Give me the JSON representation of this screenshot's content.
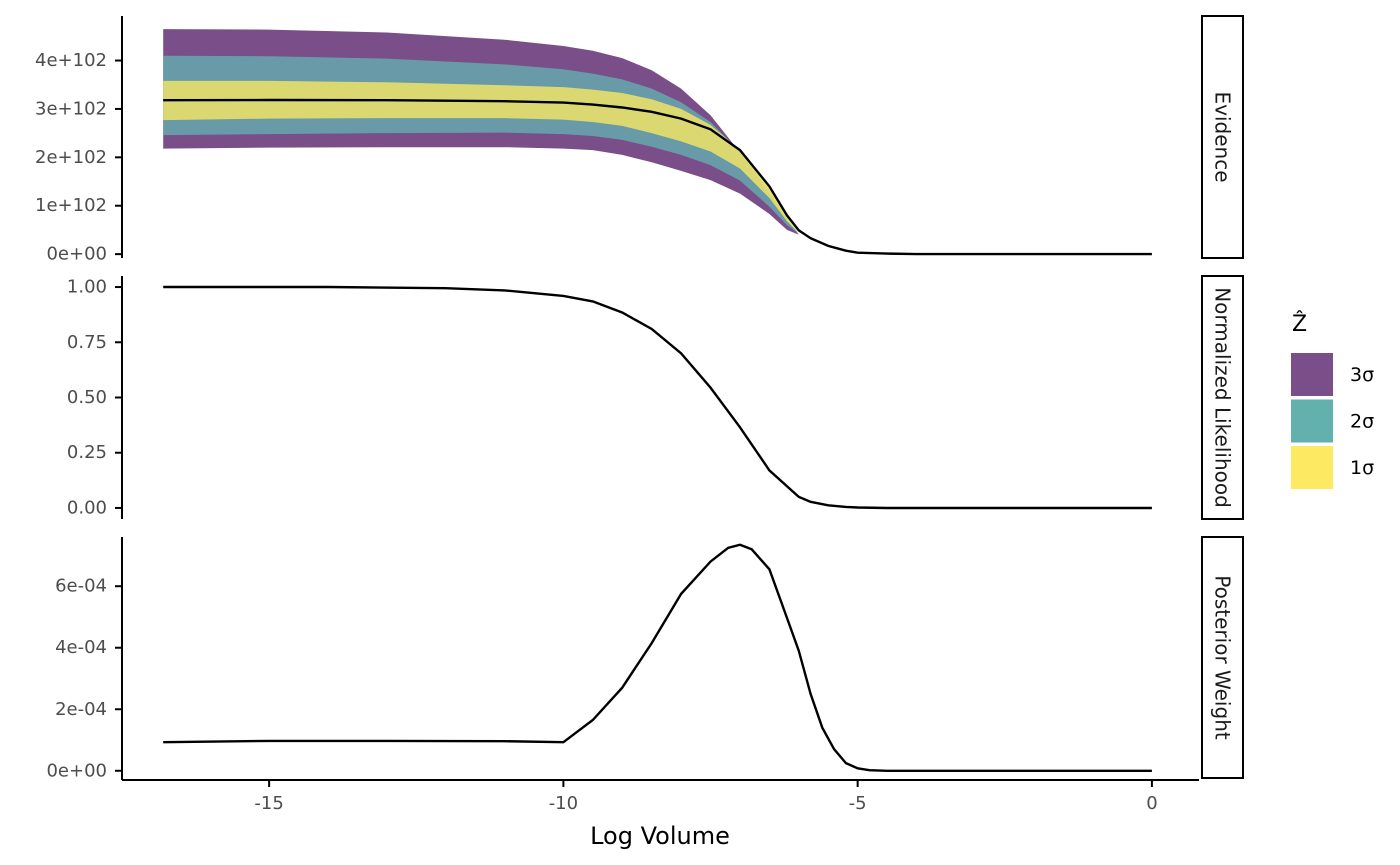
{
  "chart_data": {
    "type": "line",
    "xlabel": "Log Volume",
    "xlim": [
      -17.5,
      0.8
    ],
    "x_ticks": [
      {
        "value": -15,
        "label": "-15"
      },
      {
        "value": -10,
        "label": "-10"
      },
      {
        "value": -5,
        "label": "-5"
      },
      {
        "value": 0,
        "label": "0"
      }
    ],
    "legend": {
      "title": "Ẑ",
      "position": "right",
      "entries": [
        {
          "label": "3σ",
          "color": "#7A4E88"
        },
        {
          "label": "2σ",
          "color": "#63B1AF"
        },
        {
          "label": "1σ",
          "color": "#FDE962"
        }
      ]
    },
    "facets": [
      {
        "name": "evidence",
        "strip": "Evidence",
        "ylim": [
          -8,
          492
        ],
        "y_ticks": [
          {
            "value": 0,
            "label": "0e+00"
          },
          {
            "value": 100,
            "label": "1e+102"
          },
          {
            "value": 200,
            "label": "2e+102"
          },
          {
            "value": 300,
            "label": "3e+102"
          },
          {
            "value": 400,
            "label": "4e+102"
          }
        ],
        "line": {
          "x": [
            -16.8,
            -15,
            -13,
            -11,
            -10,
            -9.5,
            -9,
            -8.5,
            -8,
            -7.5,
            -7,
            -6.5,
            -6.2,
            -6,
            -5.8,
            -5.5,
            -5.2,
            -5,
            -4.5,
            -4,
            -2,
            0
          ],
          "y": [
            318,
            318.5,
            318,
            316,
            313,
            309,
            303,
            294,
            280,
            258,
            215,
            140,
            80,
            49,
            33,
            17,
            7,
            3,
            1,
            0,
            0,
            0
          ]
        },
        "bands": [
          {
            "label": "3σ",
            "x": [
              -16.8,
              -15,
              -13,
              -11,
              -10,
              -9.5,
              -9,
              -8.5,
              -8,
              -7.5,
              -7,
              -6.5,
              -6.2,
              -6
            ],
            "lower": [
              218,
              220,
              221,
              221,
              218,
              215,
              205,
              190,
              172,
              153,
              125,
              83,
              50,
              40
            ],
            "upper": [
              465,
              464,
              458,
              443,
              430,
              420,
              405,
              380,
              342,
              287,
              210,
              128,
              70,
              40
            ]
          },
          {
            "label": "2σ",
            "x": [
              -16.8,
              -15,
              -13,
              -11,
              -10,
              -9.5,
              -9,
              -8.5,
              -8,
              -7.5,
              -7,
              -6.5,
              -6.2,
              -6
            ],
            "lower": [
              246,
              248,
              250,
              251,
              248,
              244,
              236,
              222,
              205,
              184,
              152,
              98,
              60,
              42
            ],
            "upper": [
              410,
              409,
              404,
              392,
              382,
              373,
              361,
              342,
              314,
              273,
              212,
              134,
              75,
              42
            ]
          },
          {
            "label": "1σ",
            "x": [
              -16.8,
              -15,
              -13,
              -11,
              -10,
              -9.5,
              -9,
              -8.5,
              -8,
              -7.5,
              -7,
              -6.5,
              -6.2,
              -6
            ],
            "lower": [
              277,
              280,
              281,
              281,
              278,
              273,
              265,
              250,
              233,
              212,
              177,
              116,
              68,
              44
            ],
            "upper": [
              358,
              358,
              355,
              349,
              345,
              340,
              333,
              320,
              300,
              267,
              215,
              138,
              82,
              44
            ]
          }
        ]
      },
      {
        "name": "normalized-likelihood",
        "strip": "Normalized Likelihood",
        "ylim": [
          -0.05,
          1.05
        ],
        "y_ticks": [
          {
            "value": 0,
            "label": "0.00"
          },
          {
            "value": 0.25,
            "label": "0.25"
          },
          {
            "value": 0.5,
            "label": "0.50"
          },
          {
            "value": 0.75,
            "label": "0.75"
          },
          {
            "value": 1,
            "label": "1.00"
          }
        ],
        "line": {
          "x": [
            -16.8,
            -14,
            -12,
            -11,
            -10,
            -9.5,
            -9,
            -8.5,
            -8,
            -7.5,
            -7,
            -6.5,
            -6,
            -5.8,
            -5.5,
            -5.2,
            -5,
            -4.5,
            -4,
            -2,
            0
          ],
          "y": [
            1.0,
            1.0,
            0.995,
            0.985,
            0.96,
            0.935,
            0.885,
            0.81,
            0.7,
            0.545,
            0.365,
            0.17,
            0.05,
            0.028,
            0.012,
            0.005,
            0.002,
            0.0,
            0.0,
            0.0,
            0.0
          ]
        }
      },
      {
        "name": "posterior-weight",
        "strip": "Posterior Weight",
        "ylim": [
          -3e-05,
          0.00076
        ],
        "y_ticks": [
          {
            "value": 0,
            "label": "0e+00"
          },
          {
            "value": 0.0002,
            "label": "2e-04"
          },
          {
            "value": 0.0004,
            "label": "4e-04"
          },
          {
            "value": 0.0006,
            "label": "6e-04"
          }
        ],
        "line": {
          "x": [
            -16.8,
            -15,
            -13,
            -11,
            -10,
            -9.5,
            -9,
            -8.5,
            -8,
            -7.5,
            -7.2,
            -7,
            -6.8,
            -6.5,
            -6.3,
            -6,
            -5.8,
            -5.6,
            -5.4,
            -5.2,
            -5,
            -4.8,
            -4.5,
            -4,
            -2,
            0
          ],
          "y": [
            9.3e-05,
            9.7e-05,
            9.7e-05,
            9.6e-05,
            9.3e-05,
            0.000165,
            0.00027,
            0.000415,
            0.000575,
            0.00068,
            0.000725,
            0.000735,
            0.00072,
            0.000655,
            0.00055,
            0.00039,
            0.00025,
            0.00014,
            7e-05,
            2.5e-05,
            8e-06,
            2e-06,
            0.0,
            0.0,
            0.0,
            0.0
          ]
        }
      }
    ]
  }
}
